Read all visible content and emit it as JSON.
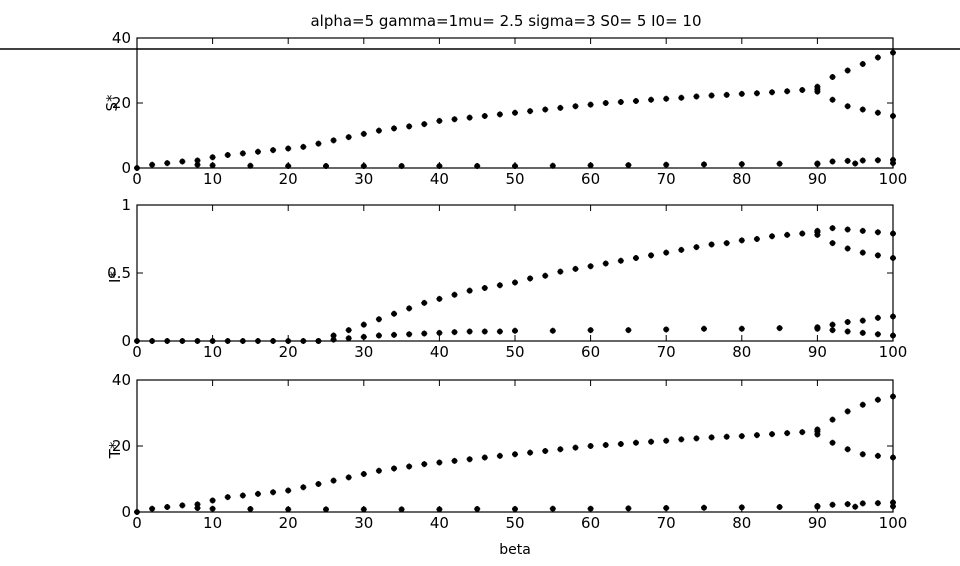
{
  "title": "alpha=5 gamma=1mu= 2.5 sigma=3 S0= 5 I0= 10",
  "colors": {
    "marker": "#000000",
    "axis": "#000000",
    "background": "#ffffff"
  },
  "chart_data": [
    {
      "type": "scatter",
      "ylabel": "S*",
      "xlim": [
        0,
        100
      ],
      "ylim": [
        0,
        40
      ],
      "xticks": [
        "0",
        "10",
        "20",
        "30",
        "40",
        "50",
        "60",
        "70",
        "80",
        "90",
        "100"
      ],
      "yticks": [
        "0",
        "20",
        "40"
      ],
      "grid": false,
      "series": [
        {
          "x": [
            0,
            2,
            4,
            6,
            8,
            10,
            12,
            14,
            16,
            18,
            20,
            22,
            24,
            26,
            28,
            30,
            32,
            34,
            36,
            38,
            40,
            42,
            44,
            46,
            48,
            50,
            52,
            54,
            56,
            58,
            60,
            62,
            64,
            66,
            68,
            70,
            72,
            74,
            76,
            78,
            80,
            82,
            84,
            86,
            88,
            90
          ],
          "y": [
            0,
            1,
            1.5,
            2,
            2.3,
            3.3,
            4,
            4.5,
            5,
            5.5,
            6,
            6.5,
            7.5,
            8.5,
            9.5,
            10.5,
            11.5,
            12.2,
            12.8,
            13.5,
            14.5,
            15,
            15.5,
            16,
            16.5,
            17,
            17.5,
            18,
            18.5,
            19,
            19.5,
            20,
            20.3,
            20.6,
            21,
            21.3,
            21.6,
            22,
            22.3,
            22.5,
            22.8,
            23,
            23.3,
            23.6,
            24,
            24.2
          ]
        },
        {
          "x": [
            90,
            92,
            94,
            96,
            98,
            100
          ],
          "y": [
            25,
            28,
            30,
            32,
            34,
            35.5
          ]
        },
        {
          "x": [
            90,
            92,
            94,
            96,
            98,
            100
          ],
          "y": [
            23.5,
            21,
            19,
            18,
            17,
            16
          ]
        },
        {
          "x": [
            8,
            10,
            15,
            20,
            25,
            30,
            35,
            40,
            45,
            50,
            55,
            60,
            65,
            70,
            75,
            80,
            85,
            90,
            95,
            100
          ],
          "y": [
            1,
            0.8,
            0.7,
            0.6,
            0.6,
            0.6,
            0.6,
            0.6,
            0.6,
            0.6,
            0.7,
            0.8,
            0.9,
            1,
            1.1,
            1.2,
            1.3,
            1.4,
            1.4,
            1.5
          ]
        },
        {
          "x": [
            90,
            92,
            94,
            96,
            98,
            100
          ],
          "y": [
            1.2,
            2,
            2.2,
            2.3,
            2.4,
            2.5
          ]
        }
      ]
    },
    {
      "type": "scatter",
      "ylabel": "I*",
      "xlim": [
        0,
        100
      ],
      "ylim": [
        0,
        1
      ],
      "xticks": [
        "0",
        "10",
        "20",
        "30",
        "40",
        "50",
        "60",
        "70",
        "80",
        "90",
        "100"
      ],
      "yticks": [
        "0",
        "0.5",
        "1"
      ],
      "grid": false,
      "series": [
        {
          "x": [
            0,
            2,
            4,
            6,
            8,
            10,
            12,
            14,
            16,
            18,
            20,
            22,
            24
          ],
          "y": [
            0,
            0,
            0,
            0,
            0,
            0,
            0,
            0,
            0,
            0,
            0,
            0,
            0
          ]
        },
        {
          "x": [
            24,
            26,
            28,
            30,
            32,
            34,
            36,
            38,
            40,
            42,
            44,
            46,
            48,
            50,
            52,
            54,
            56,
            58,
            60,
            62,
            64,
            66,
            68,
            70,
            72,
            74,
            76,
            78,
            80,
            82,
            84,
            86,
            88,
            90
          ],
          "y": [
            0,
            0.04,
            0.08,
            0.12,
            0.16,
            0.2,
            0.24,
            0.28,
            0.31,
            0.34,
            0.37,
            0.39,
            0.41,
            0.43,
            0.46,
            0.48,
            0.51,
            0.53,
            0.55,
            0.57,
            0.59,
            0.61,
            0.63,
            0.65,
            0.67,
            0.69,
            0.71,
            0.72,
            0.74,
            0.75,
            0.77,
            0.78,
            0.79,
            0.8
          ]
        },
        {
          "x": [
            90,
            92,
            94,
            96,
            98,
            100
          ],
          "y": [
            0.81,
            0.83,
            0.82,
            0.81,
            0.8,
            0.79
          ]
        },
        {
          "x": [
            90,
            92,
            94,
            96,
            98,
            100
          ],
          "y": [
            0.78,
            0.72,
            0.68,
            0.65,
            0.63,
            0.61
          ]
        },
        {
          "x": [
            26,
            28,
            30,
            32,
            34,
            36,
            38,
            40,
            42,
            44,
            46,
            48,
            50,
            55,
            60,
            65,
            70,
            75,
            80,
            85,
            90
          ],
          "y": [
            0.01,
            0.02,
            0.03,
            0.04,
            0.045,
            0.05,
            0.055,
            0.06,
            0.065,
            0.07,
            0.07,
            0.07,
            0.075,
            0.075,
            0.08,
            0.08,
            0.085,
            0.09,
            0.09,
            0.095,
            0.1
          ]
        },
        {
          "x": [
            90,
            92,
            94,
            96,
            98,
            100
          ],
          "y": [
            0.1,
            0.12,
            0.14,
            0.15,
            0.17,
            0.18
          ]
        },
        {
          "x": [
            90,
            92,
            94,
            96,
            98,
            100
          ],
          "y": [
            0.09,
            0.08,
            0.07,
            0.06,
            0.05,
            0.04
          ]
        }
      ]
    },
    {
      "type": "scatter",
      "ylabel": "T*",
      "xlim": [
        0,
        100
      ],
      "ylim": [
        0,
        40
      ],
      "xticks": [
        "0",
        "10",
        "20",
        "30",
        "40",
        "50",
        "60",
        "70",
        "80",
        "90",
        "100"
      ],
      "yticks": [
        "0",
        "20",
        "40"
      ],
      "xlabel": "beta",
      "grid": false,
      "series": [
        {
          "x": [
            0,
            2,
            4,
            6,
            8,
            10,
            12,
            14,
            16,
            18,
            20,
            22,
            24,
            26,
            28,
            30,
            32,
            34,
            36,
            38,
            40,
            42,
            44,
            46,
            48,
            50,
            52,
            54,
            56,
            58,
            60,
            62,
            64,
            66,
            68,
            70,
            72,
            74,
            76,
            78,
            80,
            82,
            84,
            86,
            88,
            90
          ],
          "y": [
            0,
            1,
            1.5,
            2,
            2.3,
            3.5,
            4.5,
            5,
            5.5,
            6,
            6.5,
            7.5,
            8.5,
            9.5,
            10.5,
            11.5,
            12.5,
            13.2,
            13.8,
            14.5,
            15,
            15.5,
            16,
            16.5,
            17,
            17.5,
            18,
            18.5,
            19,
            19.5,
            20,
            20.3,
            20.6,
            21,
            21.3,
            21.6,
            22,
            22.3,
            22.6,
            22.8,
            23,
            23.3,
            23.6,
            23.9,
            24.2,
            24.4
          ]
        },
        {
          "x": [
            90,
            92,
            94,
            96,
            98,
            100
          ],
          "y": [
            25,
            28,
            30.5,
            32.5,
            34,
            35
          ]
        },
        {
          "x": [
            90,
            92,
            94,
            96,
            98,
            100
          ],
          "y": [
            23.5,
            21,
            19,
            17.5,
            17,
            16.5
          ]
        },
        {
          "x": [
            8,
            10,
            15,
            20,
            25,
            30,
            35,
            40,
            45,
            50,
            55,
            60,
            65,
            70,
            75,
            80,
            85,
            90,
            95,
            100
          ],
          "y": [
            1.2,
            1,
            0.9,
            0.8,
            0.8,
            0.8,
            0.8,
            0.8,
            0.9,
            0.9,
            1,
            1,
            1.1,
            1.2,
            1.3,
            1.4,
            1.5,
            1.6,
            1.6,
            1.7
          ]
        },
        {
          "x": [
            90,
            92,
            94,
            96,
            98,
            100
          ],
          "y": [
            1.8,
            2.2,
            2.4,
            2.6,
            2.7,
            2.9
          ]
        }
      ]
    }
  ]
}
